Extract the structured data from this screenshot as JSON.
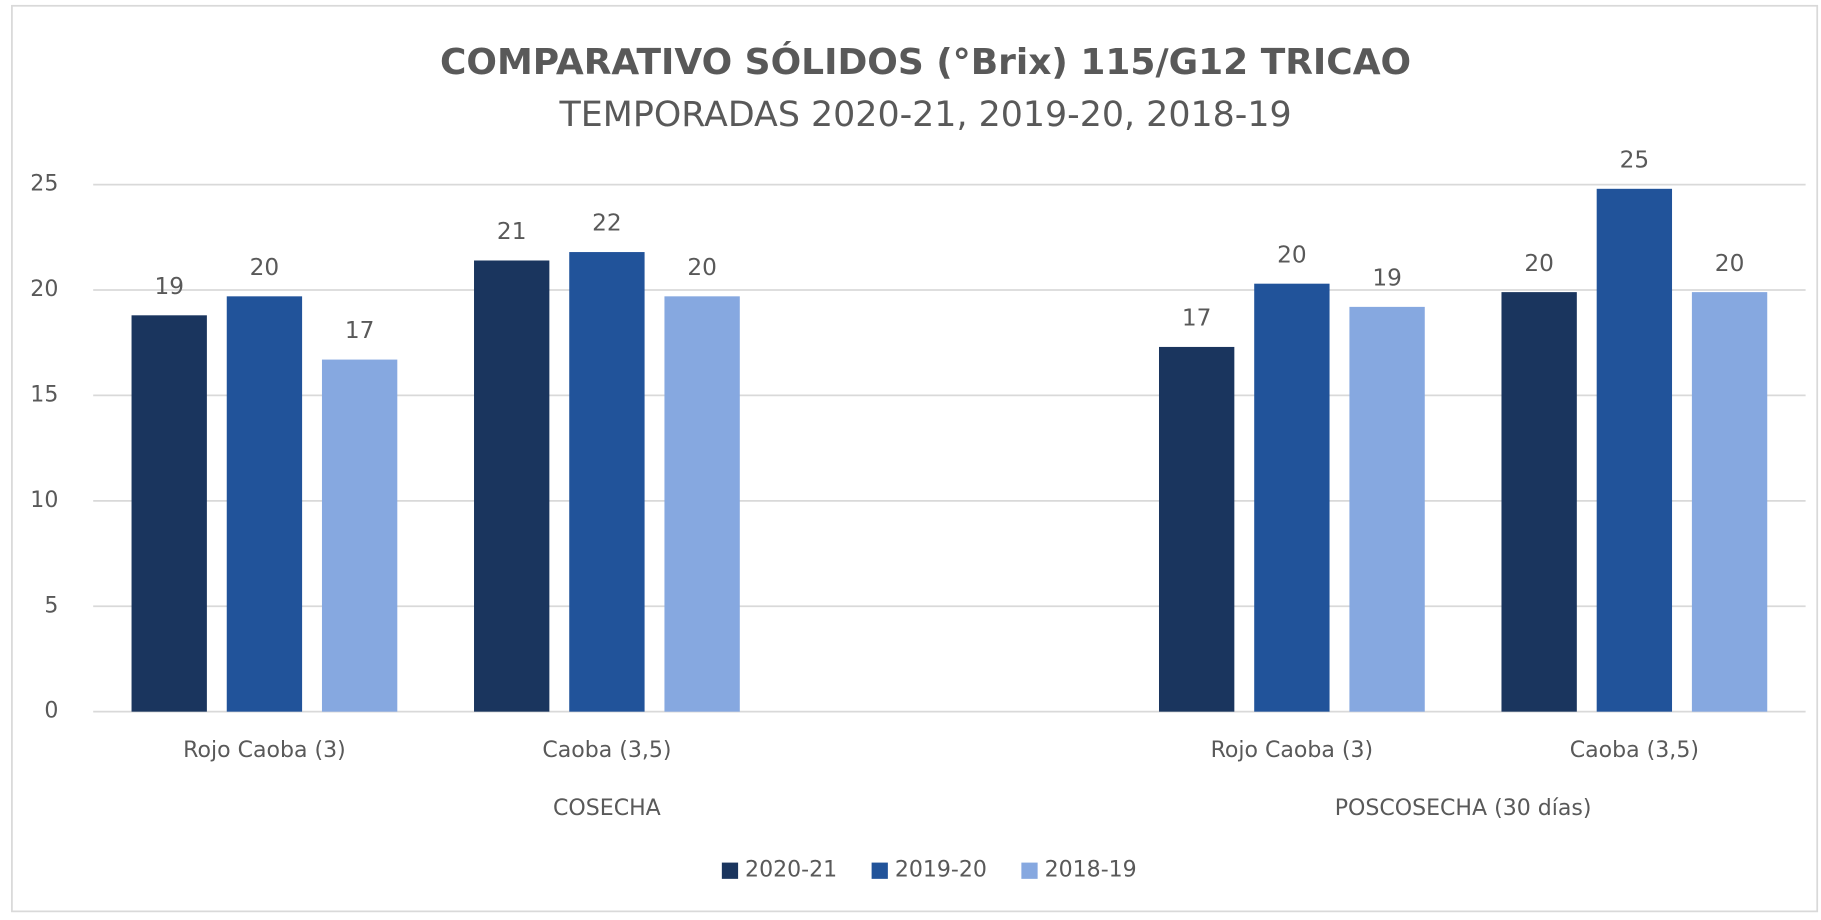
{
  "chart_data": {
    "type": "bar",
    "title": "COMPARATIVO SÓLIDOS (°Brix) 115/G12  TRICAO",
    "subtitle": "TEMPORADAS 2020-21, 2019-20, 2018-19",
    "categories": [
      "Rojo Caoba (3)",
      "Caoba (3,5)",
      null,
      "Rojo Caoba (3)",
      "Caoba (3,5)"
    ],
    "groups": [
      "COSECHA",
      "COSECHA",
      "COSECHA",
      "POSCOSECHA (30 días)",
      "POSCOSECHA (30 días)"
    ],
    "series": [
      {
        "name": "2020-21",
        "color": "#1a355e",
        "values": [
          18.8,
          21.4,
          null,
          17.3,
          19.9
        ],
        "value_labels": [
          "19",
          "21",
          null,
          "17",
          "20"
        ]
      },
      {
        "name": "2019-20",
        "color": "#21539a",
        "values": [
          19.7,
          21.8,
          null,
          20.3,
          24.8
        ],
        "value_labels": [
          "20",
          "22",
          null,
          "20",
          "25"
        ]
      },
      {
        "name": "2018-19",
        "color": "#86a8e0",
        "values": [
          16.7,
          19.7,
          null,
          19.2,
          19.9
        ],
        "value_labels": [
          "17",
          "20",
          null,
          "19",
          "20"
        ]
      }
    ],
    "ylim": [
      0,
      25
    ],
    "yticks": [
      0,
      5,
      10,
      15,
      20,
      25
    ],
    "grid": true,
    "legend": "bottom"
  }
}
